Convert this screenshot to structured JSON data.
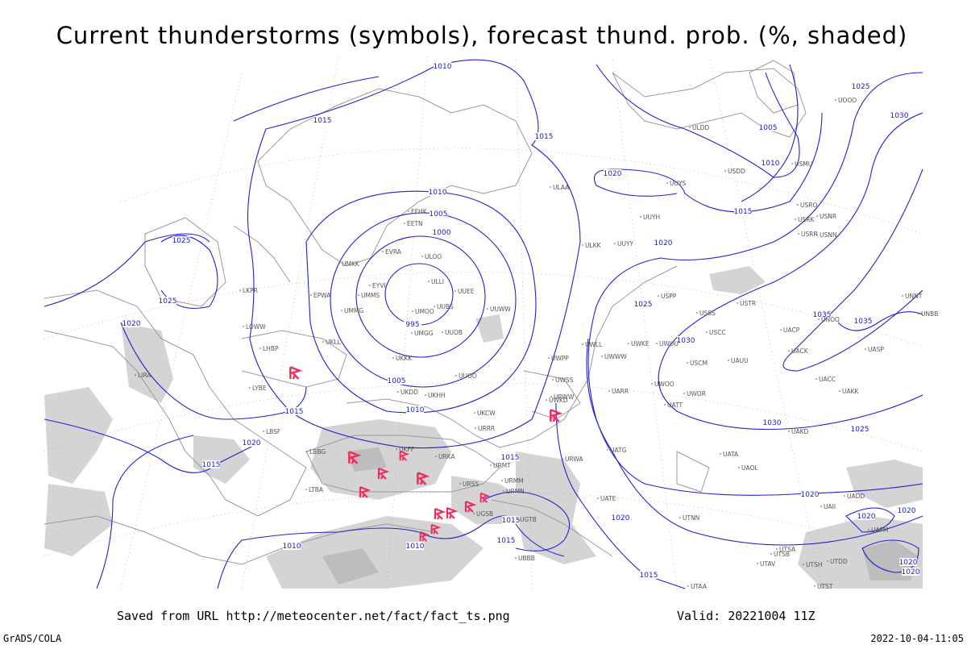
{
  "header": {
    "title": "Current thunderstorms (symbols), forecast thund. prob. (%, shaded)"
  },
  "isobar_labels": [
    "1010",
    "1015",
    "1015",
    "1020",
    "1010",
    "1005",
    "1000",
    "995",
    "1005",
    "1010",
    "1015",
    "1020",
    "1015",
    "1025",
    "1025",
    "1020",
    "1005",
    "1010",
    "1015",
    "1020",
    "1025",
    "1030",
    "1030",
    "1025",
    "1025",
    "1030",
    "1035",
    "1035",
    "1015",
    "1020",
    "1020",
    "1020",
    "1020",
    "1015",
    "1010",
    "1010",
    "1015",
    "1015",
    "1020",
    "1020"
  ],
  "station_labels": [
    "EFHK",
    "EETN",
    "EVRA",
    "UMKK",
    "EYVI",
    "UMMS",
    "UMMG",
    "EPWA",
    "UKLL",
    "LKPR",
    "LOWW",
    "LHBP",
    "ULLI",
    "ULOO",
    "UUEE",
    "UUWW",
    "UUOO",
    "UUOB",
    "UKKK",
    "UMGG",
    "UMOO",
    "UUBS",
    "UKHH",
    "UKDD",
    "UKFF",
    "URKA",
    "URRR",
    "UKCW",
    "URMT",
    "URMM",
    "URMN",
    "URSS",
    "UGSB",
    "UGTB",
    "UBBB",
    "URWW",
    "URWA",
    "UATG",
    "UATE",
    "UAOL",
    "UATA",
    "UACC",
    "UAKK",
    "UAKD",
    "UATT",
    "UARR",
    "UWOO",
    "UWOR",
    "USCM",
    "UAUU",
    "UWUU",
    "UWKE",
    "UWWW",
    "UWLL",
    "UWPP",
    "UWSS",
    "UWKD",
    "ULAA",
    "ULKK",
    "UUYY",
    "UUYH",
    "UUYS",
    "USSS",
    "USCC",
    "USTR",
    "USPP",
    "UOOO",
    "USDD",
    "USRR",
    "USNN",
    "USRK",
    "USNR",
    "USRO",
    "USMU",
    "ULDD",
    "UNNT",
    "UNBB",
    "UNOO",
    "UACP",
    "UACK",
    "UASP",
    "UTAA",
    "UTSA",
    "UTSB",
    "UTAV",
    "UTSH",
    "UTDD",
    "UTST",
    "UTNN",
    "UAFM",
    "UAII",
    "UADD",
    "LIRA",
    "LYBE",
    "LBSF",
    "LBBG",
    "LTBA"
  ],
  "footer": {
    "source": "Saved from URL http://meteocenter.net/fact/fact_ts.png",
    "valid": "Valid: 20221004 11Z",
    "credit": "GrADS/COLA",
    "timestamp": "2022-10-04-11:05"
  }
}
